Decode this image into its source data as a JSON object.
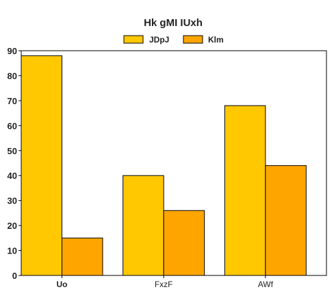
{
  "chart_data": {
    "type": "bar",
    "title": "Hk gMI IUxh",
    "xlabel": "",
    "ylabel": "",
    "categories": [
      "Uo",
      "FxzF",
      "AWf"
    ],
    "series": [
      {
        "name": "JDpJ",
        "values": [
          88,
          40,
          68
        ],
        "color": "#ffc800"
      },
      {
        "name": "Klm",
        "values": [
          15,
          26,
          44
        ],
        "color": "#ffa500"
      }
    ],
    "ylim": [
      0,
      90
    ],
    "yticks": [
      0,
      10,
      20,
      30,
      40,
      50,
      60,
      70,
      80,
      90
    ],
    "legend_position": "top-center",
    "grid": false
  }
}
